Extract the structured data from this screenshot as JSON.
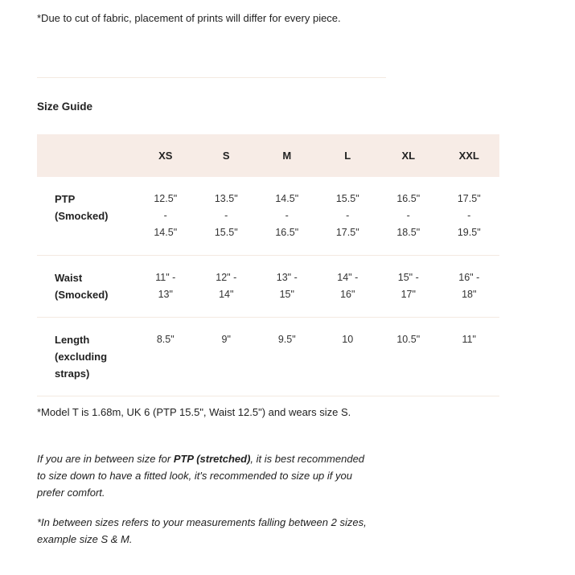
{
  "note": "*Due to cut of fabric, placement of prints will differ for every piece.",
  "size_guide": {
    "title": "Size Guide",
    "sizes": [
      "XS",
      "S",
      "M",
      "L",
      "XL",
      "XXL"
    ],
    "rows": [
      {
        "label": "PTP (Smocked)",
        "values": [
          "12.5\" - 14.5\"",
          "13.5\" - 15.5\"",
          "14.5\" - 16.5\"",
          "15.5\" - 17.5\"",
          "16.5\" - 18.5\"",
          "17.5\" - 19.5\""
        ]
      },
      {
        "label": "Waist (Smocked)",
        "values": [
          "11\" - 13\"",
          "12\" - 14\"",
          "13\" - 15\"",
          "14\" - 16\"",
          "15\" - 17\"",
          "16\" - 18\""
        ]
      },
      {
        "label": "Length (excluding straps)",
        "values": [
          "8.5\"",
          "9\"",
          "9.5\"",
          "10",
          "10.5\"",
          "11\""
        ]
      }
    ]
  },
  "model_note": "*Model T is 1.68m, UK 6 (PTP 15.5\", Waist 12.5\") and wears size S.",
  "advice": {
    "before": "If you are in between size for ",
    "bold": "PTP (stretched)",
    "after": ", it is best recommended to size down to have a fitted look, it's recommended to size up if you prefer comfort."
  },
  "between_note": "*In between sizes refers to your measurements falling between 2 sizes, example size S & M.",
  "colors": {
    "header_bg": "#f7ece6",
    "divider": "#f3e9e1"
  }
}
